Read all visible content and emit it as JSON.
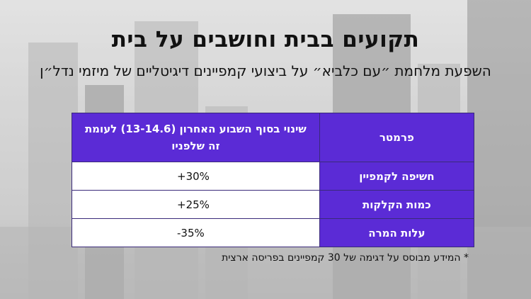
{
  "title": "תקועים בבית וחושבים על בית",
  "subtitle": "השפעת מלחמת ״עם כלביא״ על ביצועי קמפיינים דיגיטליים של מיזמי נדל״ן",
  "table": {
    "headers": {
      "param": "פרמטר",
      "change": "שינוי בסוף השבוע האחרון (13-14.6) לעומת זה שלפניו"
    },
    "rows": [
      {
        "label": "חשיפה לקמפיין",
        "value": "+30%"
      },
      {
        "label": "כמות הקלקות",
        "value": "+25%"
      },
      {
        "label": "עלות המרה",
        "value": "-35%"
      }
    ]
  },
  "footnote": "* המידע מבוסס על דגימה של 30 קמפיינים בפריסה ארצית",
  "colors": {
    "header_bg": "#5b2bd6",
    "header_text": "#ffffff",
    "cell_bg": "#ffffff"
  }
}
